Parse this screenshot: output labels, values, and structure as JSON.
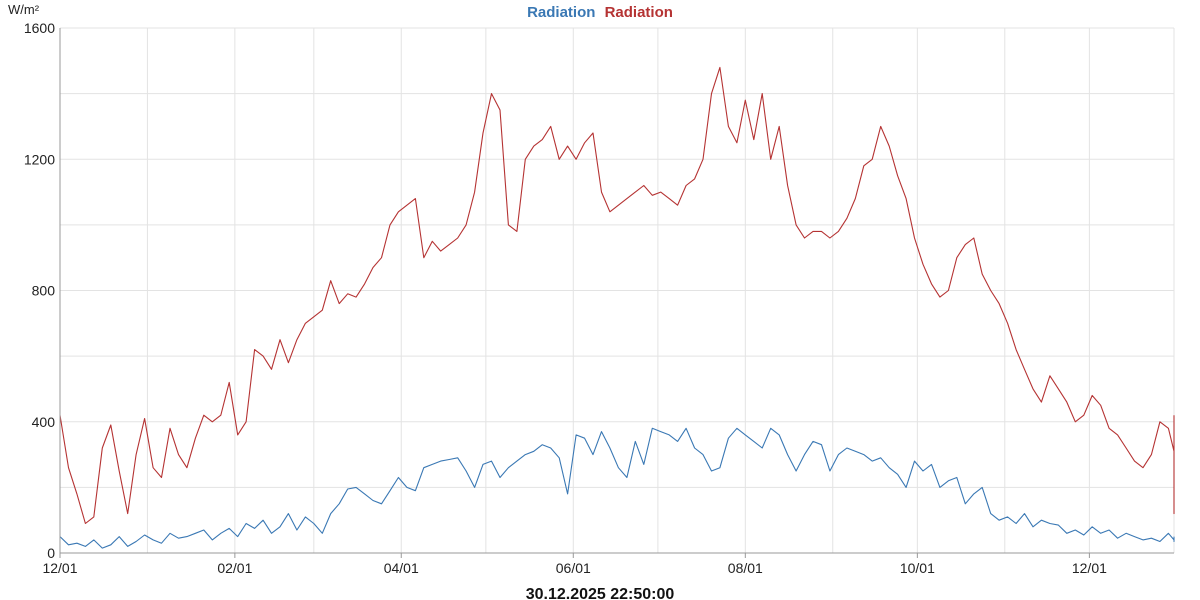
{
  "chart_data": {
    "type": "line",
    "title_parts": [
      {
        "text": "Radiation",
        "color": "#3a78b4"
      },
      {
        "text": "Radiation",
        "color": "#b53333"
      }
    ],
    "ylabel": "W/m²",
    "ylim": [
      0,
      1600
    ],
    "yticks": [
      0,
      400,
      800,
      1200,
      1600
    ],
    "xlim": [
      "2024-12-01",
      "2025-12-31"
    ],
    "xticks": [
      {
        "date": "2024-12-01",
        "label": "12/01"
      },
      {
        "date": "2025-02-01",
        "label": "02/01"
      },
      {
        "date": "2025-04-01",
        "label": "04/01"
      },
      {
        "date": "2025-06-01",
        "label": "06/01"
      },
      {
        "date": "2025-08-01",
        "label": "08/01"
      },
      {
        "date": "2025-10-01",
        "label": "10/01"
      },
      {
        "date": "2025-12-01",
        "label": "12/01"
      }
    ],
    "grid": true,
    "footer": "30.12.2025 22:50:00",
    "series": [
      {
        "name": "Radiation",
        "color": "#3a78b4",
        "x_start": "2024-12-01",
        "x_step_days": 3,
        "values": [
          50,
          25,
          30,
          20,
          40,
          15,
          25,
          50,
          20,
          35,
          55,
          40,
          30,
          60,
          45,
          50,
          60,
          70,
          40,
          60,
          75,
          50,
          90,
          75,
          100,
          60,
          80,
          120,
          70,
          110,
          90,
          60,
          120,
          150,
          195,
          200,
          180,
          160,
          150,
          190,
          230,
          200,
          190,
          260,
          270,
          280,
          285,
          290,
          250,
          200,
          270,
          280,
          230,
          260,
          280,
          300,
          310,
          330,
          320,
          290,
          180,
          360,
          350,
          300,
          370,
          320,
          260,
          230,
          340,
          270,
          380,
          370,
          360,
          340,
          380,
          320,
          300,
          250,
          260,
          350,
          380,
          360,
          340,
          320,
          380,
          360,
          300,
          250,
          300,
          340,
          330,
          250,
          300,
          320,
          310,
          300,
          280,
          290,
          260,
          240,
          200,
          280,
          250,
          270,
          200,
          220,
          230,
          150,
          180,
          200,
          120,
          100,
          110,
          90,
          120,
          80,
          100,
          90,
          85,
          60,
          70,
          55,
          80,
          60,
          70,
          45,
          60,
          50,
          40,
          45,
          35,
          60,
          40,
          35,
          50
        ]
      },
      {
        "name": "Radiation",
        "color": "#b53333",
        "x_start": "2024-12-01",
        "x_step_days": 3,
        "values": [
          420,
          260,
          180,
          90,
          110,
          320,
          390,
          250,
          120,
          300,
          410,
          260,
          230,
          380,
          300,
          260,
          350,
          420,
          400,
          420,
          520,
          360,
          400,
          620,
          600,
          560,
          650,
          580,
          650,
          700,
          720,
          740,
          830,
          760,
          790,
          780,
          820,
          870,
          900,
          1000,
          1040,
          1060,
          1080,
          900,
          950,
          920,
          940,
          960,
          1000,
          1100,
          1280,
          1400,
          1350,
          1000,
          980,
          1200,
          1240,
          1260,
          1300,
          1200,
          1240,
          1200,
          1250,
          1280,
          1100,
          1040,
          1060,
          1080,
          1100,
          1120,
          1090,
          1100,
          1080,
          1060,
          1120,
          1140,
          1200,
          1400,
          1480,
          1300,
          1250,
          1380,
          1260,
          1400,
          1200,
          1300,
          1120,
          1000,
          960,
          980,
          980,
          960,
          980,
          1020,
          1080,
          1180,
          1200,
          1300,
          1240,
          1150,
          1080,
          960,
          880,
          820,
          780,
          800,
          900,
          940,
          960,
          850,
          800,
          760,
          700,
          620,
          560,
          500,
          460,
          540,
          500,
          460,
          400,
          420,
          480,
          450,
          380,
          360,
          320,
          280,
          260,
          300,
          400,
          380,
          310,
          280,
          220,
          200,
          180,
          150,
          140,
          120,
          420
        ]
      }
    ]
  }
}
